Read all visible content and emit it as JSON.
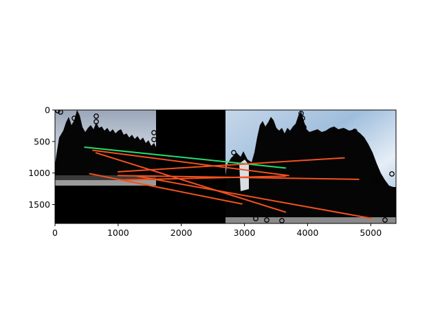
{
  "chart_data": {
    "type": "image-with-lines",
    "title": "",
    "xlabel": "",
    "ylabel": "",
    "xlim": [
      0,
      5400
    ],
    "ylim": [
      1800,
      0
    ],
    "xticks": [
      0,
      1000,
      2000,
      3000,
      4000,
      5000
    ],
    "yticks": [
      0,
      500,
      1000,
      1500
    ],
    "xtick_labels": [
      "0",
      "1000",
      "2000",
      "3000",
      "4000",
      "5000"
    ],
    "ytick_labels": [
      "0",
      "500",
      "1000",
      "1500"
    ],
    "panels": [
      {
        "name": "left-photo",
        "x": [
          0,
          1600
        ],
        "y": [
          0,
          1200
        ],
        "content": "sky and dark cliff silhouette"
      },
      {
        "name": "left-pad",
        "x": [
          0,
          1600
        ],
        "y": [
          1200,
          1800
        ],
        "content": "black padding"
      },
      {
        "name": "middle-pad",
        "x": [
          1600,
          2700
        ],
        "y": [
          0,
          1800
        ],
        "content": "black padding"
      },
      {
        "name": "right-photo",
        "x": [
          2700,
          5400
        ],
        "y": [
          0,
          1800
        ],
        "content": "sky and dark cliff silhouette"
      }
    ],
    "series": [
      {
        "name": "inlier-match",
        "color": "#22e26e",
        "segments": [
          [
            [
              470,
              590
            ],
            [
              3650,
              920
            ]
          ]
        ]
      },
      {
        "name": "outlier-matches",
        "color": "#f4511e",
        "segments": [
          [
            [
              600,
              640
            ],
            [
              3700,
              1040
            ]
          ],
          [
            [
              650,
              680
            ],
            [
              3650,
              1620
            ]
          ],
          [
            [
              550,
              1010
            ],
            [
              2960,
              1490
            ]
          ],
          [
            [
              1300,
              1050
            ],
            [
              5010,
              1720
            ]
          ],
          [
            [
              1000,
              1040
            ],
            [
              4810,
              1100
            ]
          ],
          [
            [
              1000,
              980
            ],
            [
              4580,
              760
            ]
          ],
          [
            [
              1050,
              1110
            ],
            [
              3650,
              1050
            ]
          ]
        ]
      }
    ]
  }
}
